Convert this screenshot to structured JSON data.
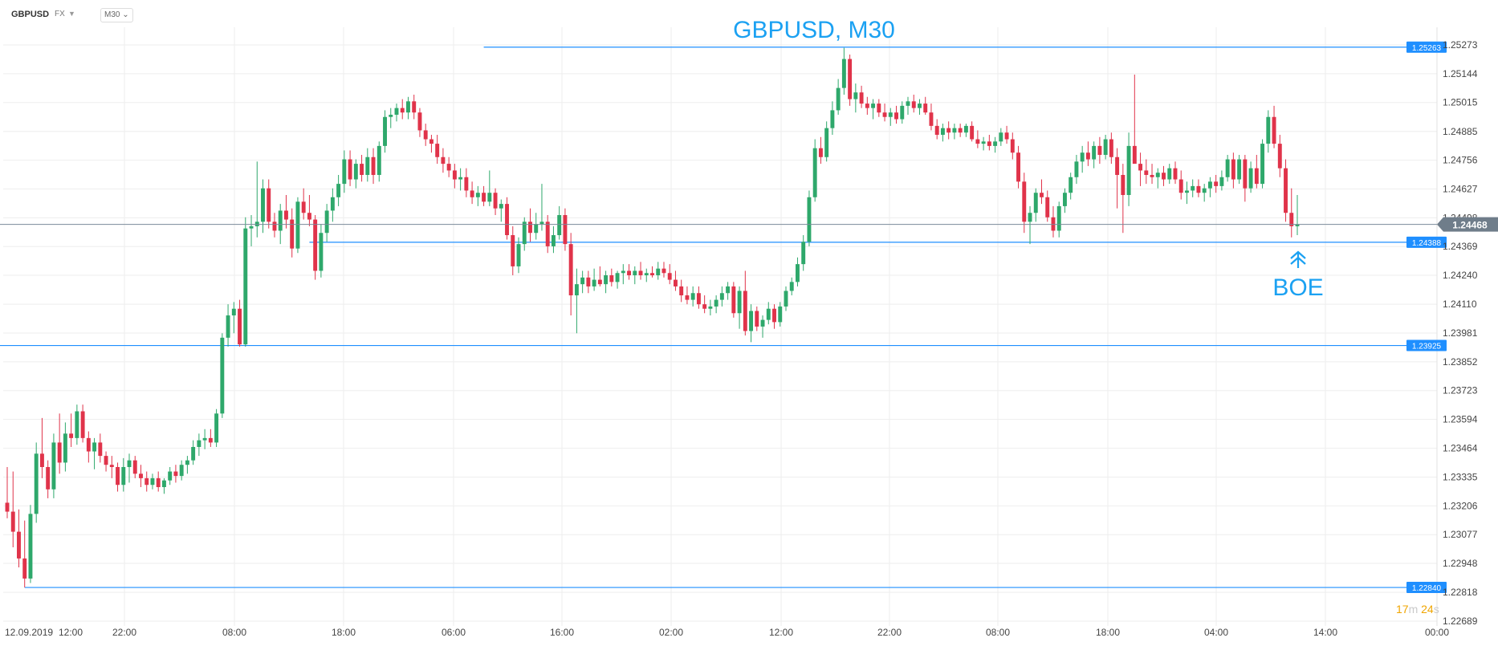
{
  "toolbar": {
    "symbol": "GBPUSD",
    "market": "FX",
    "timeframe": "M30"
  },
  "countdown": {
    "minutes": "17",
    "min_unit": "m",
    "seconds": "24",
    "sec_unit": "s"
  },
  "colors": {
    "up": "#2ea86b",
    "down": "#e0334a",
    "level": "#1f8fff",
    "price_line": "#7a8a99",
    "grid": "#eeeeee",
    "annotation": "#1ba1f2"
  },
  "chart_data": {
    "type": "candlestick",
    "title": "GBPUSD, M30",
    "yticks": [
      "1.25273",
      "1.25144",
      "1.25015",
      "1.24885",
      "1.24756",
      "1.24627",
      "1.24498",
      "1.24369",
      "1.24240",
      "1.24110",
      "1.23981",
      "1.23852",
      "1.23723",
      "1.23594",
      "1.23464",
      "1.23335",
      "1.23206",
      "1.23077",
      "1.22948",
      "1.22818",
      "1.22689"
    ],
    "xticks": [
      "12.09.2019",
      "12:00",
      "22:00",
      "08:00",
      "18:00",
      "06:00",
      "16:00",
      "02:00",
      "12:00",
      "22:00",
      "08:00",
      "18:00",
      "04:00",
      "14:00",
      "00:00"
    ],
    "ylim": [
      1.22689,
      1.25273
    ],
    "current_price": "1.24468",
    "levels": [
      {
        "label": "1.25263",
        "value": 1.25263,
        "start": 82
      },
      {
        "label": "1.24388",
        "value": 1.24388,
        "start": 52
      },
      {
        "label": "1.23925",
        "value": 1.23925,
        "start": 0
      },
      {
        "label": "1.22840",
        "value": 1.2284,
        "start": 3
      }
    ],
    "annotation": "BOE",
    "candles": [
      [
        1.2322,
        1.2338,
        1.2315,
        1.2318
      ],
      [
        1.2318,
        1.2336,
        1.2302,
        1.2309
      ],
      [
        1.2309,
        1.2319,
        1.2293,
        1.2297
      ],
      [
        1.2297,
        1.2314,
        1.2284,
        1.2288
      ],
      [
        1.2288,
        1.2321,
        1.2286,
        1.2317
      ],
      [
        1.2317,
        1.2349,
        1.2313,
        1.2344
      ],
      [
        1.2344,
        1.236,
        1.2333,
        1.2338
      ],
      [
        1.2338,
        1.2341,
        1.2324,
        1.2328
      ],
      [
        1.2328,
        1.2353,
        1.2324,
        1.2349
      ],
      [
        1.2349,
        1.2362,
        1.2335,
        1.234
      ],
      [
        1.234,
        1.2358,
        1.2336,
        1.2353
      ],
      [
        1.2353,
        1.2362,
        1.2347,
        1.2351
      ],
      [
        1.2351,
        1.2366,
        1.2348,
        1.2363
      ],
      [
        1.2363,
        1.2366,
        1.2349,
        1.2351
      ],
      [
        1.2351,
        1.2354,
        1.234,
        1.2345
      ],
      [
        1.2345,
        1.2351,
        1.2337,
        1.2349
      ],
      [
        1.2349,
        1.2353,
        1.234,
        1.2343
      ],
      [
        1.2343,
        1.2345,
        1.2336,
        1.2339
      ],
      [
        1.2339,
        1.2343,
        1.2333,
        1.2338
      ],
      [
        1.2338,
        1.234,
        1.2327,
        1.233
      ],
      [
        1.233,
        1.2342,
        1.2327,
        1.2338
      ],
      [
        1.2338,
        1.2344,
        1.2331,
        1.2341
      ],
      [
        1.2341,
        1.2343,
        1.2333,
        1.2335
      ],
      [
        1.2335,
        1.2339,
        1.2329,
        1.2333
      ],
      [
        1.2333,
        1.2336,
        1.2327,
        1.233
      ],
      [
        1.233,
        1.2335,
        1.2328,
        1.2333
      ],
      [
        1.2333,
        1.2336,
        1.2327,
        1.2329
      ],
      [
        1.2329,
        1.2333,
        1.2326,
        1.2332
      ],
      [
        1.2332,
        1.2338,
        1.233,
        1.2336
      ],
      [
        1.2336,
        1.2339,
        1.2331,
        1.2334
      ],
      [
        1.2334,
        1.2341,
        1.2332,
        1.2339
      ],
      [
        1.2339,
        1.2343,
        1.2335,
        1.2341
      ],
      [
        1.2341,
        1.235,
        1.2339,
        1.2347
      ],
      [
        1.2347,
        1.2353,
        1.2343,
        1.235
      ],
      [
        1.235,
        1.2355,
        1.2346,
        1.2351
      ],
      [
        1.2351,
        1.2355,
        1.2347,
        1.2349
      ],
      [
        1.2349,
        1.2364,
        1.2347,
        1.2362
      ],
      [
        1.2362,
        1.2398,
        1.236,
        1.2396
      ],
      [
        1.2396,
        1.2411,
        1.2392,
        1.2406
      ],
      [
        1.2406,
        1.2412,
        1.2398,
        1.2409
      ],
      [
        1.2409,
        1.2413,
        1.2392,
        1.2393
      ],
      [
        1.2393,
        1.245,
        1.2392,
        1.2445
      ],
      [
        1.2445,
        1.2451,
        1.2437,
        1.2446
      ],
      [
        1.2446,
        1.2475,
        1.2441,
        1.2448
      ],
      [
        1.2448,
        1.2467,
        1.2443,
        1.2463
      ],
      [
        1.2463,
        1.2467,
        1.2445,
        1.2448
      ],
      [
        1.2448,
        1.2452,
        1.2441,
        1.2444
      ],
      [
        1.2444,
        1.2456,
        1.2438,
        1.2453
      ],
      [
        1.2453,
        1.246,
        1.2445,
        1.2449
      ],
      [
        1.2449,
        1.2454,
        1.2432,
        1.2436
      ],
      [
        1.2436,
        1.2459,
        1.2434,
        1.2457
      ],
      [
        1.2457,
        1.2463,
        1.2449,
        1.2452
      ],
      [
        1.2452,
        1.246,
        1.2446,
        1.2449
      ],
      [
        1.2449,
        1.2451,
        1.2422,
        1.2426
      ],
      [
        1.2426,
        1.2447,
        1.2423,
        1.2443
      ],
      [
        1.2443,
        1.2456,
        1.2439,
        1.2453
      ],
      [
        1.2453,
        1.2463,
        1.2448,
        1.2459
      ],
      [
        1.2459,
        1.2469,
        1.2455,
        1.2465
      ],
      [
        1.2465,
        1.248,
        1.2461,
        1.2476
      ],
      [
        1.2476,
        1.248,
        1.2464,
        1.2467
      ],
      [
        1.2467,
        1.2476,
        1.2463,
        1.2474
      ],
      [
        1.2474,
        1.2478,
        1.2466,
        1.2469
      ],
      [
        1.2469,
        1.2481,
        1.2466,
        1.2477
      ],
      [
        1.2477,
        1.2481,
        1.2465,
        1.2469
      ],
      [
        1.2469,
        1.2484,
        1.2466,
        1.2482
      ],
      [
        1.2482,
        1.2498,
        1.2479,
        1.2495
      ],
      [
        1.2495,
        1.2499,
        1.249,
        1.2496
      ],
      [
        1.2496,
        1.2501,
        1.2493,
        1.2499
      ],
      [
        1.2499,
        1.2503,
        1.2494,
        1.2497
      ],
      [
        1.2497,
        1.2504,
        1.2494,
        1.2502
      ],
      [
        1.2502,
        1.2505,
        1.2494,
        1.2497
      ],
      [
        1.2497,
        1.2499,
        1.2486,
        1.2489
      ],
      [
        1.2489,
        1.2492,
        1.2482,
        1.2485
      ],
      [
        1.2485,
        1.2487,
        1.2479,
        1.2483
      ],
      [
        1.2483,
        1.2487,
        1.2474,
        1.2477
      ],
      [
        1.2477,
        1.2481,
        1.247,
        1.2474
      ],
      [
        1.2474,
        1.2477,
        1.2468,
        1.2471
      ],
      [
        1.2471,
        1.2474,
        1.2463,
        1.2467
      ],
      [
        1.2467,
        1.2472,
        1.2462,
        1.2468
      ],
      [
        1.2468,
        1.2472,
        1.2459,
        1.2462
      ],
      [
        1.2462,
        1.2466,
        1.2456,
        1.2459
      ],
      [
        1.2459,
        1.2464,
        1.2455,
        1.2461
      ],
      [
        1.2461,
        1.2464,
        1.2455,
        1.2457
      ],
      [
        1.2457,
        1.2471,
        1.2455,
        1.2461
      ],
      [
        1.2461,
        1.2463,
        1.2451,
        1.2454
      ],
      [
        1.2454,
        1.2458,
        1.2448,
        1.2456
      ],
      [
        1.2456,
        1.2459,
        1.244,
        1.2442
      ],
      [
        1.2442,
        1.2446,
        1.2424,
        1.2428
      ],
      [
        1.2428,
        1.2441,
        1.2425,
        1.2438
      ],
      [
        1.2438,
        1.245,
        1.2435,
        1.2448
      ],
      [
        1.2448,
        1.2454,
        1.2439,
        1.2443
      ],
      [
        1.2443,
        1.2452,
        1.244,
        1.2447
      ],
      [
        1.2447,
        1.2465,
        1.2444,
        1.2448
      ],
      [
        1.2448,
        1.2451,
        1.2434,
        1.2437
      ],
      [
        1.2437,
        1.2446,
        1.2434,
        1.2442
      ],
      [
        1.2442,
        1.2455,
        1.244,
        1.2451
      ],
      [
        1.2451,
        1.2454,
        1.2435,
        1.2438
      ],
      [
        1.2438,
        1.2443,
        1.2406,
        1.2415
      ],
      [
        1.2415,
        1.2427,
        1.2398,
        1.242
      ],
      [
        1.242,
        1.2426,
        1.2416,
        1.2423
      ],
      [
        1.2423,
        1.2426,
        1.2416,
        1.2419
      ],
      [
        1.2419,
        1.2427,
        1.2417,
        1.2422
      ],
      [
        1.2422,
        1.2428,
        1.2419,
        1.242
      ],
      [
        1.242,
        1.2426,
        1.2416,
        1.2424
      ],
      [
        1.2424,
        1.2427,
        1.2419,
        1.2421
      ],
      [
        1.2421,
        1.2426,
        1.2418,
        1.2425
      ],
      [
        1.2425,
        1.2429,
        1.242,
        1.2426
      ],
      [
        1.2426,
        1.2429,
        1.2422,
        1.2424
      ],
      [
        1.2424,
        1.2428,
        1.242,
        1.2426
      ],
      [
        1.2426,
        1.243,
        1.2422,
        1.2424
      ],
      [
        1.2424,
        1.2427,
        1.2421,
        1.2425
      ],
      [
        1.2425,
        1.2428,
        1.2423,
        1.2424
      ],
      [
        1.2424,
        1.243,
        1.2422,
        1.2427
      ],
      [
        1.2427,
        1.243,
        1.2423,
        1.2425
      ],
      [
        1.2425,
        1.2429,
        1.242,
        1.2422
      ],
      [
        1.2422,
        1.2426,
        1.2417,
        1.2419
      ],
      [
        1.2419,
        1.2422,
        1.2412,
        1.2415
      ],
      [
        1.2415,
        1.2419,
        1.2411,
        1.2413
      ],
      [
        1.2413,
        1.2419,
        1.241,
        1.2416
      ],
      [
        1.2416,
        1.2419,
        1.2409,
        1.2411
      ],
      [
        1.2411,
        1.2415,
        1.2407,
        1.2409
      ],
      [
        1.2409,
        1.2413,
        1.2406,
        1.241
      ],
      [
        1.241,
        1.2415,
        1.2407,
        1.2413
      ],
      [
        1.2413,
        1.2419,
        1.241,
        1.2416
      ],
      [
        1.2416,
        1.2421,
        1.2413,
        1.2419
      ],
      [
        1.2419,
        1.2421,
        1.2405,
        1.2407
      ],
      [
        1.2407,
        1.2419,
        1.24,
        1.2417
      ],
      [
        1.2417,
        1.2426,
        1.2397,
        1.2399
      ],
      [
        1.2399,
        1.2411,
        1.2394,
        1.2408
      ],
      [
        1.2408,
        1.241,
        1.2399,
        1.2401
      ],
      [
        1.2401,
        1.2406,
        1.2396,
        1.2404
      ],
      [
        1.2404,
        1.2412,
        1.2402,
        1.2409
      ],
      [
        1.2409,
        1.2411,
        1.24,
        1.2403
      ],
      [
        1.2403,
        1.2412,
        1.2401,
        1.241
      ],
      [
        1.241,
        1.2419,
        1.2408,
        1.2417
      ],
      [
        1.2417,
        1.2423,
        1.2415,
        1.2421
      ],
      [
        1.2421,
        1.2432,
        1.2419,
        1.2429
      ],
      [
        1.2429,
        1.2442,
        1.2426,
        1.2439
      ],
      [
        1.2439,
        1.2462,
        1.2437,
        1.2459
      ],
      [
        1.2459,
        1.2485,
        1.2457,
        1.2481
      ],
      [
        1.2481,
        1.2486,
        1.2474,
        1.2477
      ],
      [
        1.2477,
        1.2493,
        1.2475,
        1.249
      ],
      [
        1.249,
        1.2502,
        1.2487,
        1.2498
      ],
      [
        1.2498,
        1.2512,
        1.2496,
        1.2508
      ],
      [
        1.2508,
        1.2526,
        1.2505,
        1.2521
      ],
      [
        1.2521,
        1.2523,
        1.25,
        1.2503
      ],
      [
        1.2503,
        1.251,
        1.2497,
        1.2506
      ],
      [
        1.2506,
        1.2509,
        1.2499,
        1.2501
      ],
      [
        1.2501,
        1.2504,
        1.2496,
        1.2499
      ],
      [
        1.2499,
        1.2503,
        1.2494,
        1.2501
      ],
      [
        1.2501,
        1.2503,
        1.2495,
        1.2497
      ],
      [
        1.2497,
        1.2501,
        1.2493,
        1.2495
      ],
      [
        1.2495,
        1.2499,
        1.2491,
        1.2497
      ],
      [
        1.2497,
        1.25,
        1.2492,
        1.2494
      ],
      [
        1.2494,
        1.2502,
        1.2492,
        1.25
      ],
      [
        1.25,
        1.2504,
        1.2496,
        1.2502
      ],
      [
        1.2502,
        1.2505,
        1.2497,
        1.2499
      ],
      [
        1.2499,
        1.2503,
        1.2496,
        1.2501
      ],
      [
        1.2501,
        1.2504,
        1.2496,
        1.2497
      ],
      [
        1.2497,
        1.2501,
        1.2489,
        1.2491
      ],
      [
        1.2491,
        1.2494,
        1.2485,
        1.2487
      ],
      [
        1.2487,
        1.2492,
        1.2484,
        1.249
      ],
      [
        1.249,
        1.2493,
        1.2485,
        1.2488
      ],
      [
        1.2488,
        1.2492,
        1.2485,
        1.249
      ],
      [
        1.249,
        1.2492,
        1.2486,
        1.2488
      ],
      [
        1.2488,
        1.2492,
        1.2486,
        1.2491
      ],
      [
        1.2491,
        1.2493,
        1.2484,
        1.2485
      ],
      [
        1.2485,
        1.2489,
        1.2481,
        1.2483
      ],
      [
        1.2483,
        1.2486,
        1.248,
        1.2484
      ],
      [
        1.2484,
        1.2487,
        1.248,
        1.2482
      ],
      [
        1.2482,
        1.2486,
        1.2479,
        1.2484
      ],
      [
        1.2484,
        1.249,
        1.2482,
        1.2488
      ],
      [
        1.2488,
        1.2491,
        1.2483,
        1.2485
      ],
      [
        1.2485,
        1.2488,
        1.2476,
        1.2479
      ],
      [
        1.2479,
        1.2482,
        1.2463,
        1.2466
      ],
      [
        1.2466,
        1.247,
        1.2443,
        1.2448
      ],
      [
        1.2448,
        1.2455,
        1.2438,
        1.2452
      ],
      [
        1.2452,
        1.2463,
        1.2448,
        1.2461
      ],
      [
        1.2461,
        1.2467,
        1.2456,
        1.2459
      ],
      [
        1.2459,
        1.2462,
        1.2448,
        1.245
      ],
      [
        1.245,
        1.2455,
        1.2441,
        1.2444
      ],
      [
        1.2444,
        1.2457,
        1.2441,
        1.2455
      ],
      [
        1.2455,
        1.2463,
        1.2452,
        1.2461
      ],
      [
        1.2461,
        1.247,
        1.2458,
        1.2468
      ],
      [
        1.2468,
        1.2478,
        1.2465,
        1.2475
      ],
      [
        1.2475,
        1.2482,
        1.247,
        1.2479
      ],
      [
        1.2479,
        1.2484,
        1.2473,
        1.2476
      ],
      [
        1.2476,
        1.2484,
        1.2472,
        1.2482
      ],
      [
        1.2482,
        1.2486,
        1.2474,
        1.2478
      ],
      [
        1.2478,
        1.2487,
        1.2476,
        1.2485
      ],
      [
        1.2485,
        1.2488,
        1.2474,
        1.2477
      ],
      [
        1.2477,
        1.2481,
        1.2454,
        1.2469
      ],
      [
        1.2469,
        1.2474,
        1.2443,
        1.246
      ],
      [
        1.246,
        1.2488,
        1.2455,
        1.2482
      ],
      [
        1.2482,
        1.2514,
        1.2476,
        1.2474
      ],
      [
        1.2474,
        1.2479,
        1.2464,
        1.2471
      ],
      [
        1.2471,
        1.2476,
        1.2465,
        1.2469
      ],
      [
        1.2469,
        1.2474,
        1.2465,
        1.2468
      ],
      [
        1.2468,
        1.2472,
        1.2463,
        1.247
      ],
      [
        1.247,
        1.2473,
        1.2464,
        1.2467
      ],
      [
        1.2467,
        1.2474,
        1.2465,
        1.2472
      ],
      [
        1.2472,
        1.2475,
        1.2465,
        1.2467
      ],
      [
        1.2467,
        1.2471,
        1.2458,
        1.2461
      ],
      [
        1.2461,
        1.2466,
        1.2456,
        1.2462
      ],
      [
        1.2462,
        1.2467,
        1.2459,
        1.2464
      ],
      [
        1.2464,
        1.2467,
        1.2459,
        1.2461
      ],
      [
        1.2461,
        1.2465,
        1.2457,
        1.2463
      ],
      [
        1.2463,
        1.2468,
        1.2459,
        1.2466
      ],
      [
        1.2466,
        1.2469,
        1.2461,
        1.2464
      ],
      [
        1.2464,
        1.2471,
        1.2462,
        1.2468
      ],
      [
        1.2468,
        1.2478,
        1.2466,
        1.2476
      ],
      [
        1.2476,
        1.2479,
        1.2463,
        1.2467
      ],
      [
        1.2467,
        1.2478,
        1.2465,
        1.2476
      ],
      [
        1.2476,
        1.2478,
        1.2457,
        1.2463
      ],
      [
        1.2463,
        1.2475,
        1.2461,
        1.2472
      ],
      [
        1.2472,
        1.2478,
        1.2463,
        1.2465
      ],
      [
        1.2465,
        1.2485,
        1.2463,
        1.2483
      ],
      [
        1.2483,
        1.2498,
        1.2479,
        1.2495
      ],
      [
        1.2495,
        1.25,
        1.2481,
        1.2483
      ],
      [
        1.2483,
        1.2487,
        1.2468,
        1.2472
      ],
      [
        1.2472,
        1.2476,
        1.2448,
        1.2452
      ],
      [
        1.2452,
        1.2463,
        1.2441,
        1.2446
      ],
      [
        1.2446,
        1.246,
        1.2442,
        1.24468
      ]
    ]
  }
}
